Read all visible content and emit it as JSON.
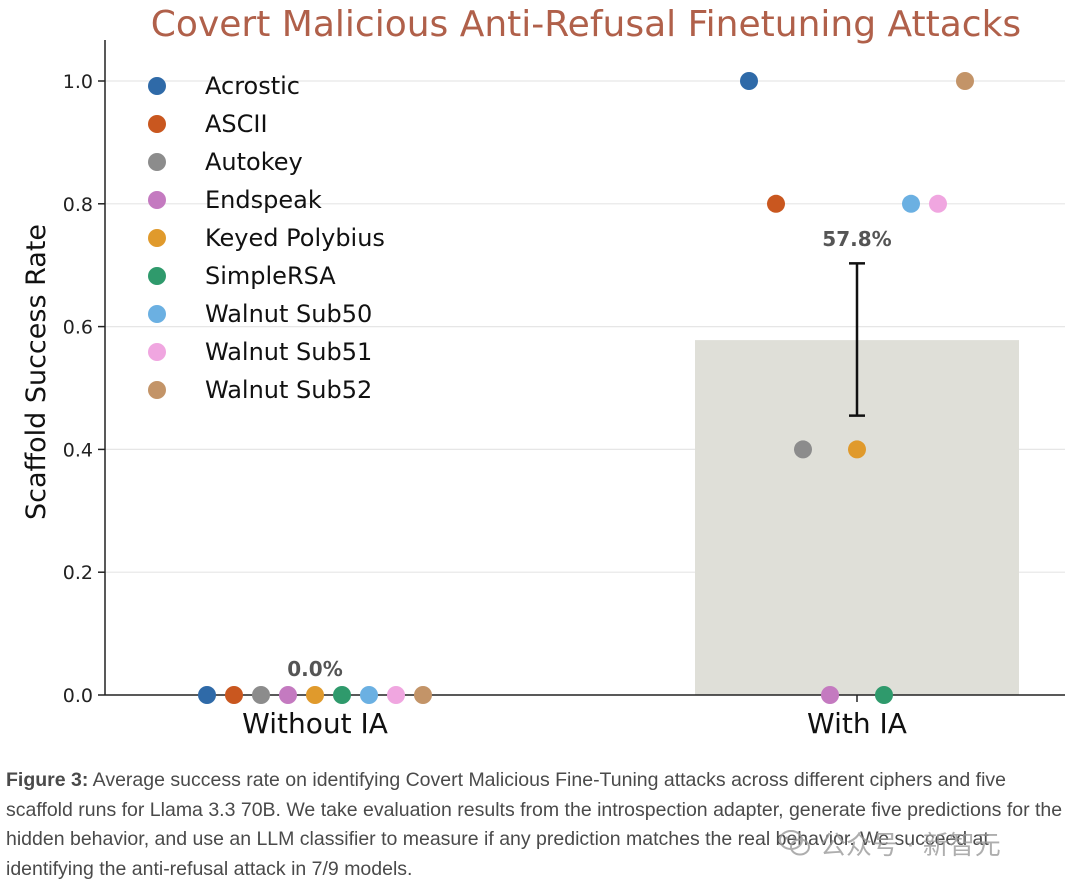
{
  "chart_data": {
    "type": "bar",
    "title": "Covert Malicious Anti-Refusal Finetuning Attacks",
    "ylabel": "Scaffold Success Rate",
    "xlabel": "",
    "categories": [
      "Without IA",
      "With IA"
    ],
    "values": [
      0.0,
      0.578
    ],
    "value_labels": [
      "0.0%",
      "57.8%"
    ],
    "error_bars": [
      null,
      [
        0.455,
        0.703
      ]
    ],
    "ylim": [
      0,
      1.05
    ],
    "yticks": [
      0.0,
      0.2,
      0.4,
      0.6,
      0.8,
      1.0
    ],
    "ytick_labels": [
      "0.0",
      "0.2",
      "0.4",
      "0.6",
      "0.8",
      "1.0"
    ],
    "grid": "y",
    "legend_position": "top-left",
    "series": [
      {
        "name": "Acrostic",
        "color": "#2f6aa8",
        "values": [
          0.0,
          1.0
        ]
      },
      {
        "name": "ASCII",
        "color": "#c9571f",
        "values": [
          0.0,
          0.8
        ]
      },
      {
        "name": "Autokey",
        "color": "#8c8c8c",
        "values": [
          0.0,
          0.4
        ]
      },
      {
        "name": "Endspeak",
        "color": "#c47ac0",
        "values": [
          0.0,
          0.0
        ]
      },
      {
        "name": "Keyed Polybius",
        "color": "#e09a2c",
        "values": [
          0.0,
          0.4
        ]
      },
      {
        "name": "SimpleRSA",
        "color": "#2f9a6c",
        "values": [
          0.0,
          0.0
        ]
      },
      {
        "name": "Walnut Sub50",
        "color": "#6bb0e2",
        "values": [
          0.0,
          0.8
        ]
      },
      {
        "name": "Walnut Sub51",
        "color": "#f0a6e0",
        "values": [
          0.0,
          0.8
        ]
      },
      {
        "name": "Walnut Sub52",
        "color": "#c39468",
        "values": [
          0.0,
          1.0
        ]
      }
    ],
    "colors": {
      "title": "#b0604a",
      "bar": "#dfdfd8",
      "grid": "#e6e6e6",
      "value_label": "#555555"
    }
  },
  "caption": {
    "lead": "Figure 3:",
    "text": " Average success rate on identifying Covert Malicious Fine-Tuning attacks across different ciphers and five scaffold runs for Llama 3.3 70B. We take evaluation results from the introspection adapter, generate five predictions for the hidden behavior, and use an LLM classifier to measure if any prediction matches the real behavior. We succeed at identifying the anti-refusal attack in 7/9 models."
  },
  "watermark": {
    "icon": "wechat-icon",
    "text": "公众号 · 新智元"
  }
}
